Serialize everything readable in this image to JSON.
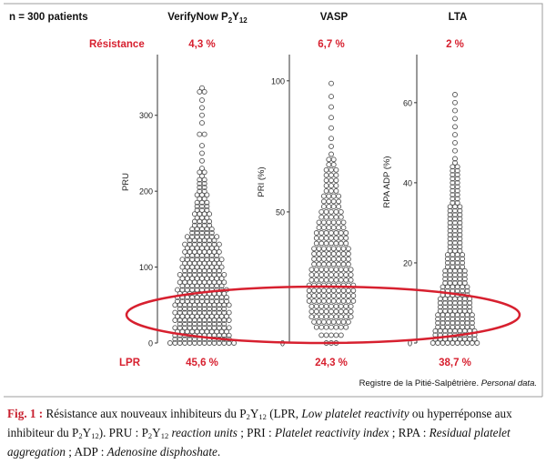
{
  "figure": {
    "n_label": "n = 300 patients",
    "resistance_label": "Résistance",
    "lpr_label": "LPR",
    "source": "Registre de la Pitié-Salpêtrière.",
    "source_italic": "Personal data.",
    "accent_color": "#d7202f",
    "frame_color": "#9c9c9c"
  },
  "chart_data": [
    {
      "type": "scatter",
      "title": "VerifyNow P2Y12",
      "title_main": "VerifyNow P",
      "title_sub1": "2",
      "title_mid": "Y",
      "title_sub2": "12",
      "ylabel": "PRU",
      "ylim": [
        0,
        380
      ],
      "yticks": [
        0,
        100,
        200,
        300
      ],
      "resistance_pct": "4,3 %",
      "lpr_pct": "45,6 %",
      "bins": [
        [
          0,
          14
        ],
        [
          5,
          12
        ],
        [
          10,
          12
        ],
        [
          15,
          11
        ],
        [
          20,
          12
        ],
        [
          25,
          10
        ],
        [
          30,
          12
        ],
        [
          35,
          11
        ],
        [
          40,
          12
        ],
        [
          45,
          10
        ],
        [
          50,
          12
        ],
        [
          55,
          11
        ],
        [
          60,
          11
        ],
        [
          65,
          10
        ],
        [
          70,
          11
        ],
        [
          75,
          9
        ],
        [
          80,
          10
        ],
        [
          85,
          9
        ],
        [
          90,
          10
        ],
        [
          95,
          8
        ],
        [
          100,
          9
        ],
        [
          105,
          8
        ],
        [
          110,
          9
        ],
        [
          115,
          7
        ],
        [
          120,
          8
        ],
        [
          125,
          7
        ],
        [
          130,
          8
        ],
        [
          135,
          6
        ],
        [
          140,
          7
        ],
        [
          145,
          5
        ],
        [
          150,
          5
        ],
        [
          155,
          4
        ],
        [
          160,
          4
        ],
        [
          165,
          3
        ],
        [
          170,
          4
        ],
        [
          175,
          3
        ],
        [
          180,
          3
        ],
        [
          185,
          3
        ],
        [
          190,
          2
        ],
        [
          195,
          3
        ],
        [
          200,
          2
        ],
        [
          205,
          2
        ],
        [
          210,
          2
        ],
        [
          215,
          2
        ],
        [
          220,
          1
        ],
        [
          225,
          2
        ],
        [
          230,
          1
        ],
        [
          240,
          1
        ],
        [
          250,
          1
        ],
        [
          260,
          1
        ],
        [
          275,
          2
        ],
        [
          290,
          1
        ],
        [
          300,
          1
        ],
        [
          310,
          1
        ],
        [
          320,
          1
        ],
        [
          331,
          2
        ],
        [
          336,
          1
        ]
      ]
    },
    {
      "type": "scatter",
      "title": "VASP",
      "ylabel": "PRI (%)",
      "ylim": [
        0,
        110
      ],
      "yticks": [
        0,
        50,
        100
      ],
      "resistance_pct": "6,7 %",
      "lpr_pct": "24,3 %",
      "bins": [
        [
          0,
          3
        ],
        [
          3,
          5
        ],
        [
          6,
          7
        ],
        [
          8,
          8
        ],
        [
          10,
          9
        ],
        [
          12,
          9
        ],
        [
          14,
          9
        ],
        [
          16,
          10
        ],
        [
          18,
          10
        ],
        [
          20,
          10
        ],
        [
          22,
          10
        ],
        [
          24,
          9
        ],
        [
          26,
          9
        ],
        [
          28,
          9
        ],
        [
          30,
          8
        ],
        [
          32,
          8
        ],
        [
          34,
          8
        ],
        [
          36,
          8
        ],
        [
          38,
          7
        ],
        [
          40,
          7
        ],
        [
          42,
          7
        ],
        [
          44,
          6
        ],
        [
          46,
          6
        ],
        [
          48,
          5
        ],
        [
          50,
          5
        ],
        [
          52,
          4
        ],
        [
          54,
          4
        ],
        [
          56,
          4
        ],
        [
          58,
          3
        ],
        [
          60,
          3
        ],
        [
          62,
          3
        ],
        [
          64,
          3
        ],
        [
          66,
          3
        ],
        [
          68,
          2
        ],
        [
          70,
          2
        ],
        [
          72,
          1
        ],
        [
          75,
          1
        ],
        [
          78,
          1
        ],
        [
          82,
          1
        ],
        [
          86,
          1
        ],
        [
          90,
          1
        ],
        [
          94,
          1
        ],
        [
          99,
          1
        ]
      ]
    },
    {
      "type": "scatter",
      "title": "LTA",
      "ylabel": "RPA ADP (%)",
      "ylim": [
        0,
        72
      ],
      "yticks": [
        0,
        20,
        40,
        60
      ],
      "resistance_pct": "2 %",
      "lpr_pct": "38,7 %",
      "bins": [
        [
          0,
          10
        ],
        [
          1,
          9
        ],
        [
          2,
          9
        ],
        [
          3,
          9
        ],
        [
          4,
          8
        ],
        [
          5,
          8
        ],
        [
          6,
          8
        ],
        [
          7,
          8
        ],
        [
          8,
          7
        ],
        [
          9,
          7
        ],
        [
          10,
          7
        ],
        [
          11,
          7
        ],
        [
          12,
          6
        ],
        [
          13,
          6
        ],
        [
          14,
          6
        ],
        [
          15,
          5
        ],
        [
          16,
          5
        ],
        [
          17,
          5
        ],
        [
          18,
          5
        ],
        [
          19,
          4
        ],
        [
          20,
          4
        ],
        [
          21,
          4
        ],
        [
          22,
          4
        ],
        [
          23,
          3
        ],
        [
          24,
          3
        ],
        [
          25,
          3
        ],
        [
          26,
          3
        ],
        [
          27,
          3
        ],
        [
          28,
          3
        ],
        [
          29,
          3
        ],
        [
          30,
          3
        ],
        [
          31,
          3
        ],
        [
          32,
          3
        ],
        [
          33,
          3
        ],
        [
          34,
          3
        ],
        [
          35,
          2
        ],
        [
          36,
          2
        ],
        [
          37,
          2
        ],
        [
          38,
          2
        ],
        [
          39,
          2
        ],
        [
          40,
          2
        ],
        [
          41,
          2
        ],
        [
          42,
          2
        ],
        [
          43,
          2
        ],
        [
          44,
          2
        ],
        [
          45,
          1
        ],
        [
          46,
          1
        ],
        [
          48,
          1
        ],
        [
          50,
          1
        ],
        [
          52,
          1
        ],
        [
          54,
          1
        ],
        [
          56,
          1
        ],
        [
          58,
          1
        ],
        [
          60,
          1
        ],
        [
          62,
          1
        ]
      ]
    }
  ],
  "caption": {
    "label": "Fig. 1 :",
    "t1": " Résistance aux nouveaux inhibiteurs du P",
    "s1": "2",
    "t2": "Y",
    "s2": "12",
    "t3": " (LPR, ",
    "i1": "Low platelet reactivity",
    "t4": " ou hyperréponse aux inhibiteur du P",
    "s3": "2",
    "t5": "Y",
    "s4": "12",
    "t6": "). PRU : P",
    "s5": "2",
    "t7": "Y",
    "s6": "12",
    "t8": " ",
    "i2": "reaction units",
    "t9": " ; PRI : ",
    "i3": "Platelet reactivity index",
    "t10": " ; RPA : ",
    "i4": "Residual platelet aggregation",
    "t11": " ; ADP : ",
    "i5": "Adenosine disphoshate",
    "t12": "."
  }
}
